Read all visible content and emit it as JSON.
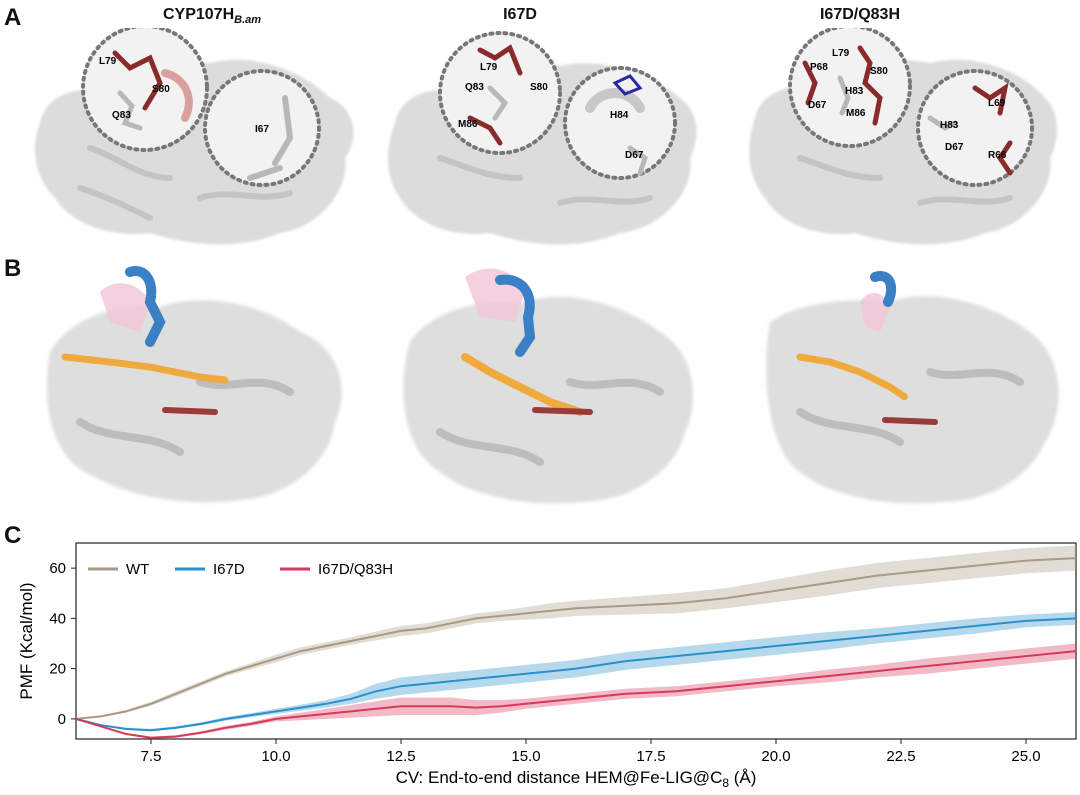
{
  "panels": {
    "a": {
      "letter": "A",
      "columns": [
        {
          "title": "CYP107H",
          "title_sub": "B.am",
          "zoom1_labels": [
            "L79",
            "S80",
            "Q83"
          ],
          "zoom2_labels": [
            "I67"
          ]
        },
        {
          "title": "I67D",
          "title_sub": "",
          "zoom1_labels": [
            "L79",
            "Q83",
            "S80",
            "M86"
          ],
          "zoom2_labels": [
            "H84",
            "D67"
          ]
        },
        {
          "title": "I67D/Q83H",
          "title_sub": "",
          "zoom1_labels": [
            "L79",
            "P68",
            "S80",
            "D67",
            "H83",
            "M86"
          ],
          "zoom2_labels": [
            "L69",
            "H83",
            "D67",
            "R66"
          ]
        }
      ]
    },
    "b": {
      "letter": "B"
    },
    "c": {
      "letter": "C"
    }
  },
  "colors": {
    "surface": "#dcdcdc",
    "zoom_bg": "#f2f2f2",
    "residue_dark": "#8a2b2b",
    "residue_light": "#b8b8b8",
    "loop_blue": "#3b7fc4",
    "loop_pink": "#f2c6d8",
    "ligand_orange": "#f0a93c",
    "heme": "#9a3b3b"
  },
  "chart_data": {
    "type": "line",
    "xlabel": "CV: End-to-end distance HEM@Fe-LIG@C",
    "xlabel_sub": "8",
    "xlabel_tail": " (Å)",
    "ylabel": "PMF (Kcal/mol)",
    "xlim": [
      6.0,
      26.0
    ],
    "ylim": [
      -8,
      70
    ],
    "xticks": [
      "7.5",
      "10.0",
      "12.5",
      "15.0",
      "17.5",
      "20.0",
      "22.5",
      "25.0"
    ],
    "yticks": [
      "0",
      "20",
      "40",
      "60"
    ],
    "legend_position": "top-left",
    "series": [
      {
        "name": "WT",
        "color": "#a89a84",
        "x": [
          6,
          6.5,
          7,
          7.5,
          8,
          8.5,
          9,
          9.5,
          10,
          10.5,
          11,
          11.5,
          12,
          12.5,
          13,
          13.5,
          14,
          14.5,
          15,
          15.5,
          16,
          17,
          18,
          19,
          20,
          21,
          22,
          23,
          24,
          25,
          26
        ],
        "y": [
          0,
          1,
          3,
          6,
          10,
          14,
          18,
          21,
          24,
          27,
          29,
          31,
          33,
          35,
          36,
          38,
          40,
          41,
          42,
          43,
          44,
          45,
          46,
          48,
          51,
          54,
          57,
          59,
          61,
          63,
          64
        ],
        "band": [
          0,
          0.3,
          0.5,
          0.8,
          1,
          1,
          1,
          1.2,
          1.5,
          1.5,
          1.5,
          1.5,
          1.8,
          2,
          2,
          2,
          2,
          2,
          2.5,
          3,
          3,
          3.5,
          4,
          4,
          4.5,
          5,
          5,
          5,
          5,
          5,
          5
        ]
      },
      {
        "name": "I67D",
        "color": "#2b8fcc",
        "x": [
          6,
          6.5,
          7,
          7.5,
          8,
          8.5,
          9,
          9.5,
          10,
          10.5,
          11,
          11.5,
          12,
          12.5,
          13,
          13.5,
          14,
          14.5,
          15,
          15.5,
          16,
          17,
          18,
          19,
          20,
          21,
          22,
          23,
          24,
          25,
          26
        ],
        "y": [
          0,
          -2.5,
          -4,
          -4.5,
          -3.5,
          -2,
          0,
          1.5,
          3,
          4.5,
          6,
          8,
          11,
          13,
          14,
          15,
          16,
          17,
          18,
          19,
          20,
          23,
          25,
          27,
          29,
          31,
          33,
          35,
          37,
          39,
          40
        ],
        "band": [
          0,
          0.3,
          0.4,
          0.5,
          0.5,
          0.6,
          0.7,
          0.8,
          1,
          1.2,
          1.5,
          2,
          3,
          3.5,
          3.5,
          3.5,
          3.5,
          3.5,
          3.5,
          3.5,
          3.5,
          3.5,
          3.5,
          3.5,
          3.5,
          3.5,
          3,
          3,
          3,
          2.5,
          2.5
        ]
      },
      {
        "name": "I67D/Q83H",
        "color": "#d63a5c",
        "x": [
          6,
          6.5,
          7,
          7.5,
          8,
          8.5,
          9,
          9.5,
          10,
          10.5,
          11,
          11.5,
          12,
          12.5,
          13,
          13.5,
          14,
          14.5,
          15,
          15.5,
          16,
          17,
          18,
          19,
          20,
          21,
          22,
          23,
          24,
          25,
          26
        ],
        "y": [
          0,
          -3,
          -6,
          -7.5,
          -7,
          -5.5,
          -3.5,
          -2,
          0,
          1,
          2,
          3,
          4,
          5,
          5,
          5,
          4.5,
          5,
          6,
          7,
          8,
          10,
          11,
          13,
          15,
          17,
          19,
          21,
          23,
          25,
          27
        ],
        "band": [
          0,
          0.3,
          0.4,
          0.5,
          0.5,
          0.6,
          0.7,
          0.8,
          1,
          1.5,
          2,
          2.5,
          3,
          3.5,
          3.5,
          3.5,
          3,
          2.5,
          2,
          2,
          2,
          2,
          2,
          2,
          2,
          2.5,
          2.5,
          3,
          3,
          3,
          3
        ]
      }
    ]
  }
}
